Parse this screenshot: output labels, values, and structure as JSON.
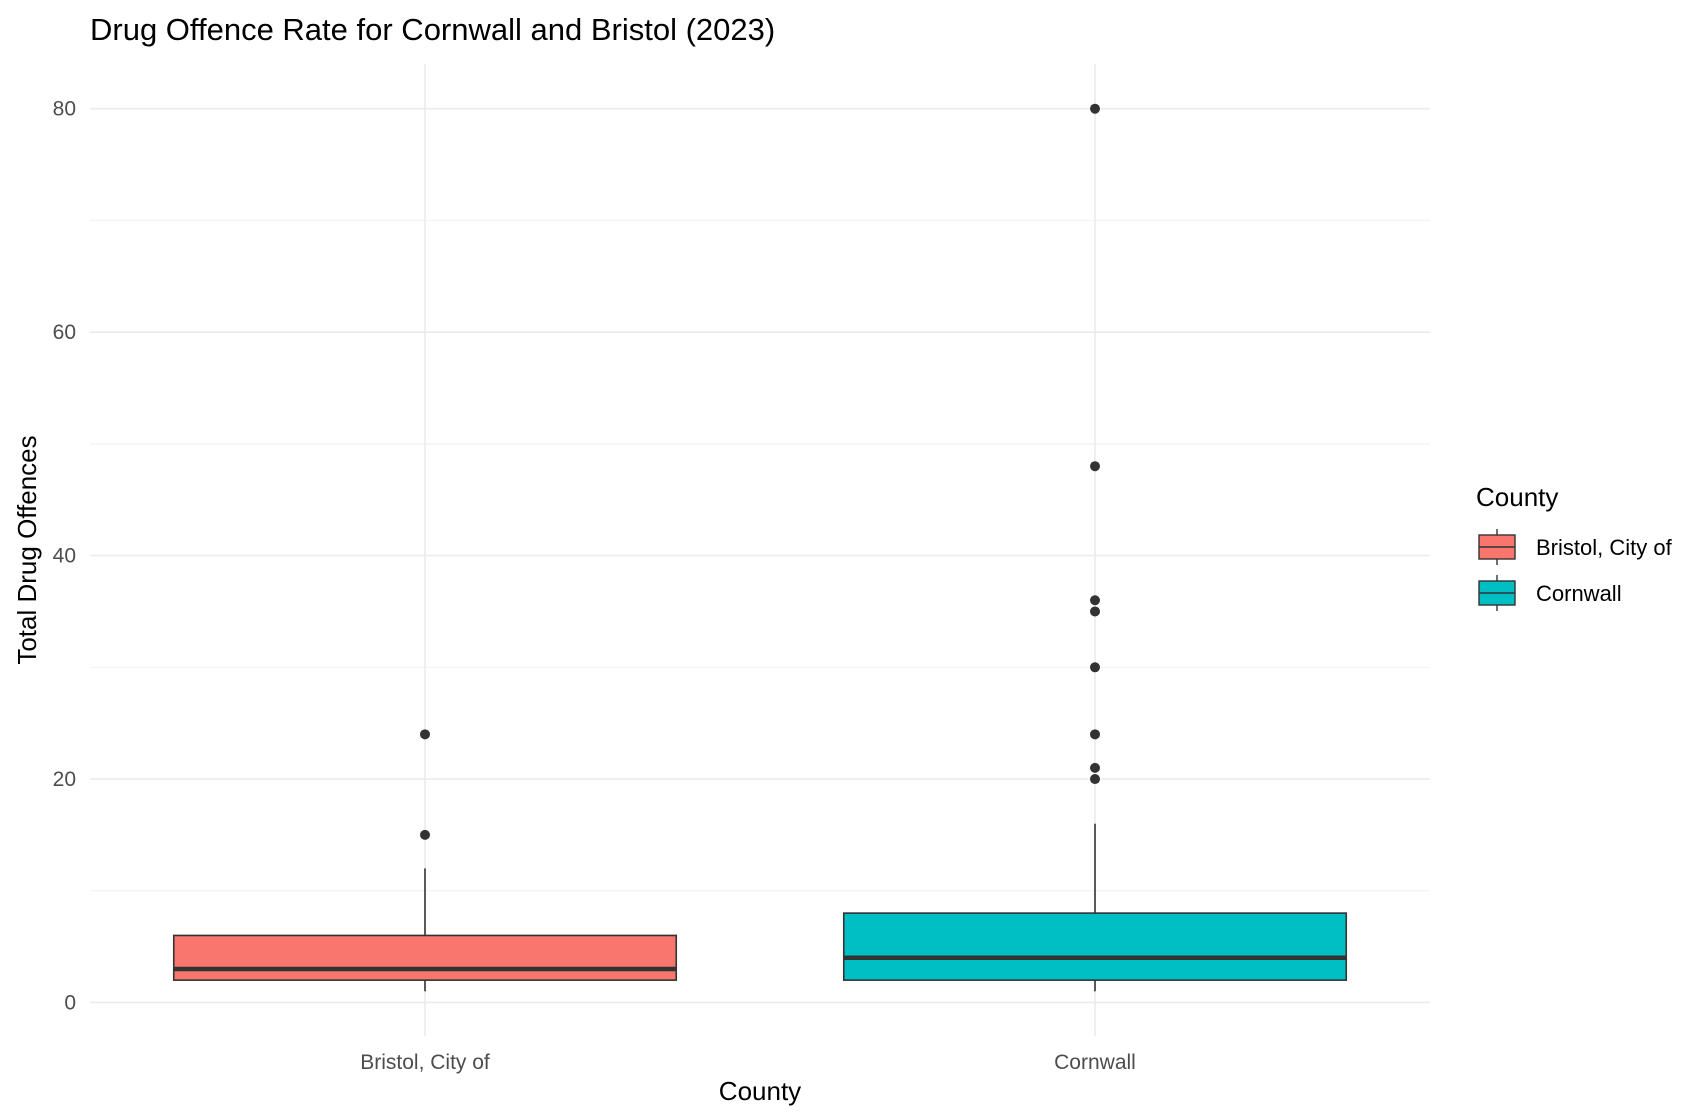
{
  "chart_data": {
    "type": "boxplot",
    "title": "Drug Offence Rate for Cornwall and Bristol (2023)",
    "xlabel": "County",
    "ylabel": "Total Drug Offences",
    "ylim": [
      -3,
      84
    ],
    "yticks": [
      0,
      20,
      40,
      60,
      80
    ],
    "grid": true,
    "legend": {
      "title": "County",
      "position": "right",
      "entries": [
        "Bristol, City of",
        "Cornwall"
      ]
    },
    "categories": [
      "Bristol, City of",
      "Cornwall"
    ],
    "series": [
      {
        "name": "Bristol, City of",
        "color": "#F8766D",
        "min": 1,
        "q1": 2,
        "median": 3,
        "q3": 6,
        "max": 12,
        "outliers": [
          15,
          24
        ]
      },
      {
        "name": "Cornwall",
        "color": "#00BFC4",
        "min": 1,
        "q1": 2,
        "median": 4,
        "q3": 8,
        "max": 16,
        "outliers": [
          20,
          21,
          24,
          30,
          35,
          36,
          48,
          80
        ]
      }
    ]
  }
}
